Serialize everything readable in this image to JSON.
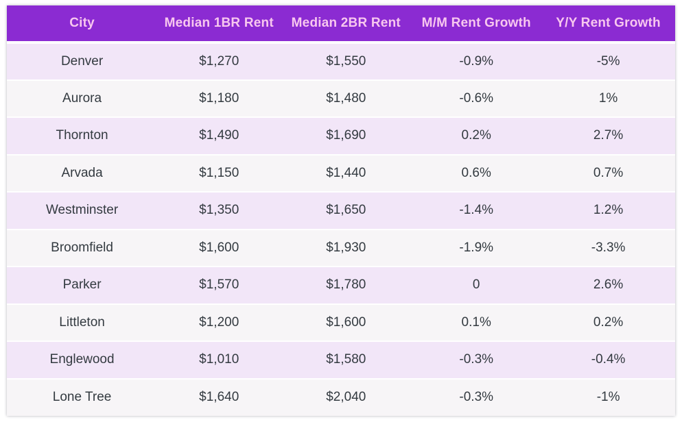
{
  "chart_data": {
    "type": "table",
    "columns": [
      "City",
      "Median 1BR Rent",
      "Median 2BR Rent",
      "M/M Rent Growth",
      "Y/Y Rent Growth"
    ],
    "rows": [
      [
        "Denver",
        "$1,270",
        "$1,550",
        "-0.9%",
        "-5%"
      ],
      [
        "Aurora",
        "$1,180",
        "$1,480",
        "-0.6%",
        "1%"
      ],
      [
        "Thornton",
        "$1,490",
        "$1,690",
        "0.2%",
        "2.7%"
      ],
      [
        "Arvada",
        "$1,150",
        "$1,440",
        "0.6%",
        "0.7%"
      ],
      [
        "Westminster",
        "$1,350",
        "$1,650",
        "-1.4%",
        "1.2%"
      ],
      [
        "Broomfield",
        "$1,600",
        "$1,930",
        "-1.9%",
        "-3.3%"
      ],
      [
        "Parker",
        "$1,570",
        "$1,780",
        "0",
        "2.6%"
      ],
      [
        "Littleton",
        "$1,200",
        "$1,600",
        "0.1%",
        "0.2%"
      ],
      [
        "Englewood",
        "$1,010",
        "$1,580",
        "-0.3%",
        "-0.4%"
      ],
      [
        "Lone Tree",
        "$1,640",
        "$2,040",
        "-0.3%",
        "-1%"
      ]
    ],
    "title": "",
    "legend": null,
    "grid": false
  },
  "style": {
    "header_bg": "#8b2bd2",
    "header_text": "#f8c7ef",
    "row_odd_bg": "#f2e6f8",
    "row_even_bg": "#f7f5f7",
    "body_text": "#333a40",
    "page_bg": "#ffffff"
  }
}
